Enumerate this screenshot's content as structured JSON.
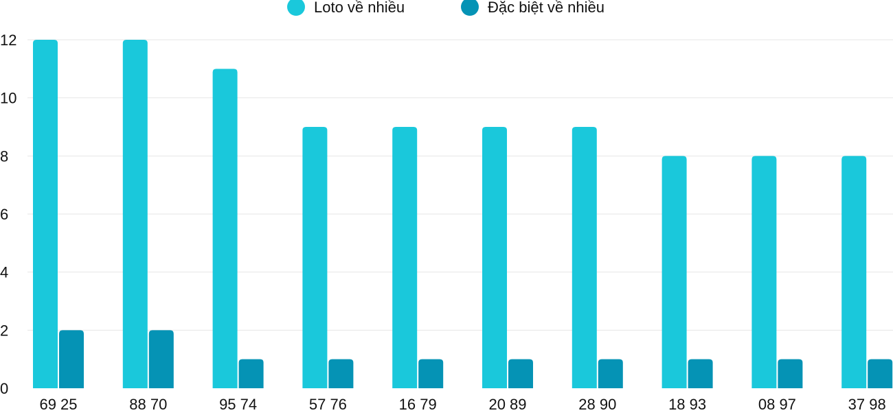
{
  "colors": {
    "series_1": "#1ac8db",
    "series_2": "#0593b5",
    "grid": "#e6e6e6",
    "text": "#111111"
  },
  "chart_data": {
    "type": "bar",
    "title": "",
    "xlabel": "",
    "ylabel": "",
    "categories": [
      "69 25",
      "88 70",
      "95 74",
      "57 76",
      "16 79",
      "20 89",
      "28 90",
      "18 93",
      "08 97",
      "37 98"
    ],
    "series": [
      {
        "name": "Loto về nhiều",
        "values": [
          12,
          12,
          11,
          9,
          9,
          9,
          9,
          8,
          8,
          8
        ]
      },
      {
        "name": "Đặc biệt về nhiều",
        "values": [
          2,
          2,
          1,
          1,
          1,
          1,
          1,
          1,
          1,
          1
        ]
      }
    ],
    "ylim": [
      0,
      12
    ],
    "yticks": [
      0,
      2,
      4,
      6,
      8,
      10,
      12
    ],
    "grid": true,
    "legend_position": "top-center"
  }
}
